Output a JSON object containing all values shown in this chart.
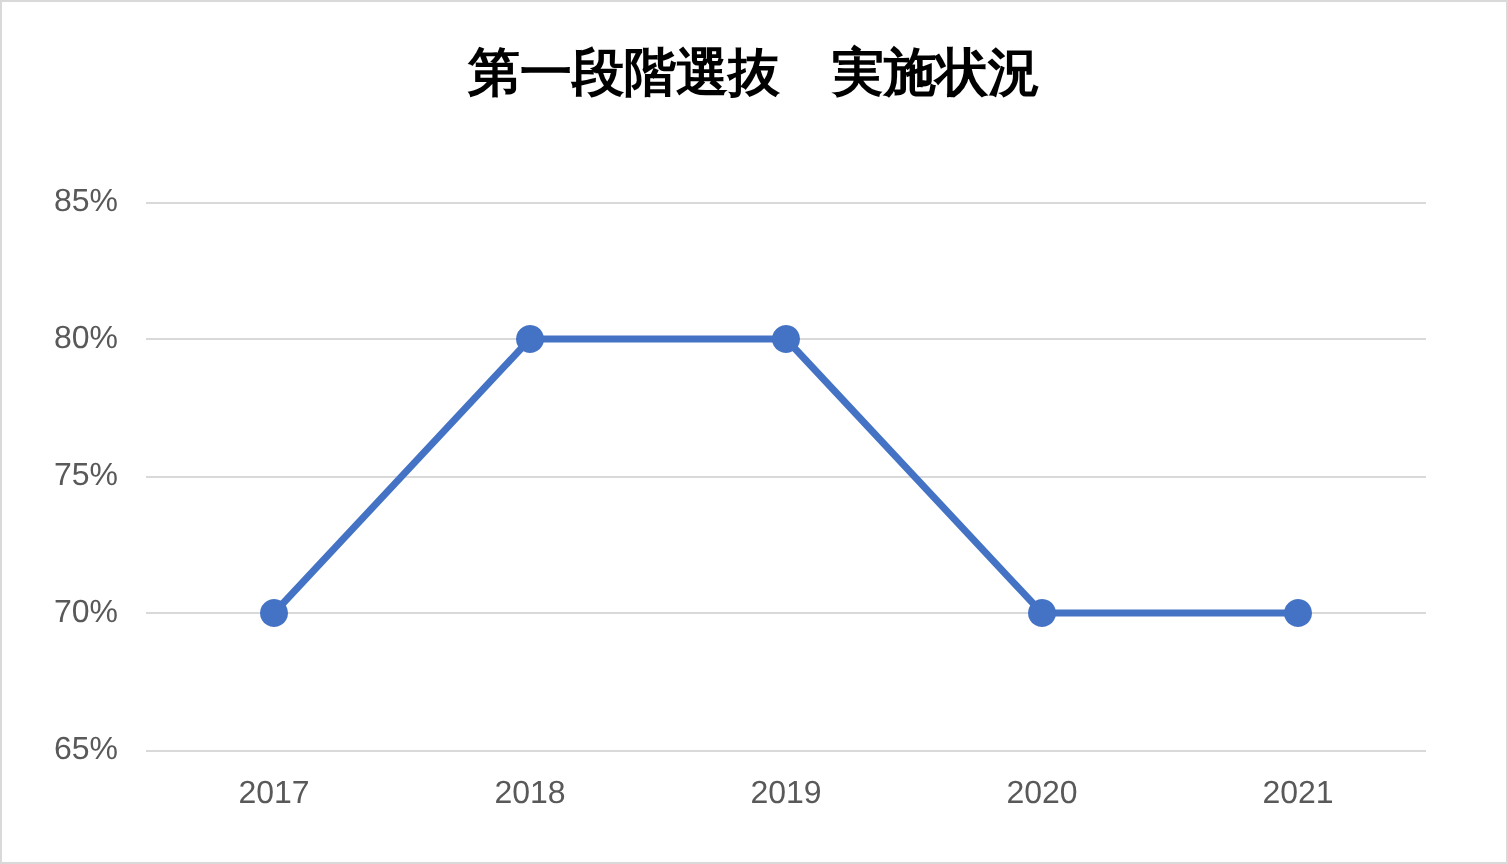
{
  "chart_data": {
    "type": "line",
    "title": "第一段階選抜　実施状況",
    "categories": [
      "2017",
      "2018",
      "2019",
      "2020",
      "2021"
    ],
    "series": [
      {
        "color": "#4472c4",
        "values": [
          70,
          80,
          80,
          70,
          70
        ]
      }
    ],
    "ylim": [
      65,
      85
    ],
    "yticks": [
      {
        "value": 65,
        "label": "65%"
      },
      {
        "value": 70,
        "label": "70%"
      },
      {
        "value": 75,
        "label": "75%"
      },
      {
        "value": 80,
        "label": "80%"
      },
      {
        "value": 85,
        "label": "85%"
      }
    ],
    "grid": "y",
    "marker": "circle",
    "line_style": "solid"
  }
}
